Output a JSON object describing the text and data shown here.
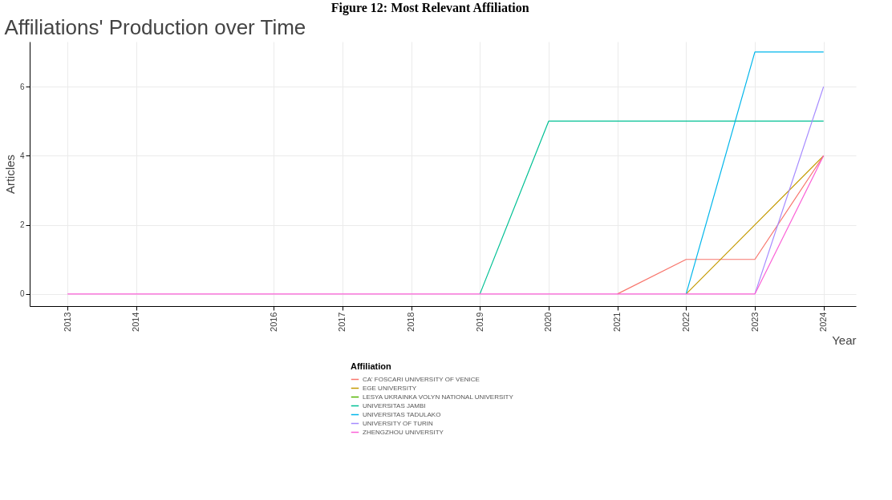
{
  "chart_data": {
    "type": "line",
    "title": "Figure 12: Most Relevant Affiliation",
    "subtitle": "Affiliations' Production over Time",
    "xlabel": "Year",
    "ylabel": "Articles",
    "legend_title": "Affiliation",
    "x": [
      2013,
      2014,
      2016,
      2017,
      2018,
      2019,
      2020,
      2021,
      2022,
      2023,
      2024
    ],
    "xlim": [
      2012.45,
      2024.47
    ],
    "xticks": [
      2013,
      2014,
      2016,
      2017,
      2018,
      2019,
      2020,
      2021,
      2022,
      2023,
      2024
    ],
    "ylim": [
      -0.35,
      7.3
    ],
    "yticks": [
      0,
      2,
      4,
      6
    ],
    "series": [
      {
        "name": "CA' FOSCARI UNIVERSITY OF VENICE",
        "color": "#f8766d",
        "values": [
          null,
          null,
          null,
          null,
          null,
          null,
          null,
          0,
          1,
          1,
          4
        ]
      },
      {
        "name": "EGE UNIVERSITY",
        "color": "#c49a00",
        "values": [
          null,
          null,
          null,
          null,
          null,
          null,
          null,
          null,
          0,
          2,
          4
        ]
      },
      {
        "name": "LESYA UKRAINKA VOLYN NATIONAL UNIVERSITY",
        "color": "#53b400",
        "values": [
          null,
          null,
          null,
          null,
          null,
          null,
          null,
          null,
          null,
          null,
          null
        ]
      },
      {
        "name": "UNIVERSITAS JAMBI",
        "color": "#00c094",
        "values": [
          null,
          null,
          null,
          null,
          null,
          0,
          5,
          5,
          5,
          5,
          5
        ]
      },
      {
        "name": "UNIVERSITAS TADULAKO",
        "color": "#00b6eb",
        "values": [
          null,
          null,
          null,
          null,
          null,
          null,
          null,
          null,
          0,
          7,
          7
        ]
      },
      {
        "name": "UNIVERSITY OF TURIN",
        "color": "#a58aff",
        "values": [
          null,
          null,
          null,
          null,
          null,
          null,
          null,
          null,
          null,
          0,
          6
        ]
      },
      {
        "name": "ZHENGZHOU UNIVERSITY",
        "color": "#fb61d7",
        "values": [
          0,
          0,
          0,
          0,
          0,
          0,
          0,
          0,
          0,
          0,
          4
        ]
      }
    ],
    "grid": true,
    "legend": "bottom",
    "marker": "none",
    "line_style": "solid"
  }
}
